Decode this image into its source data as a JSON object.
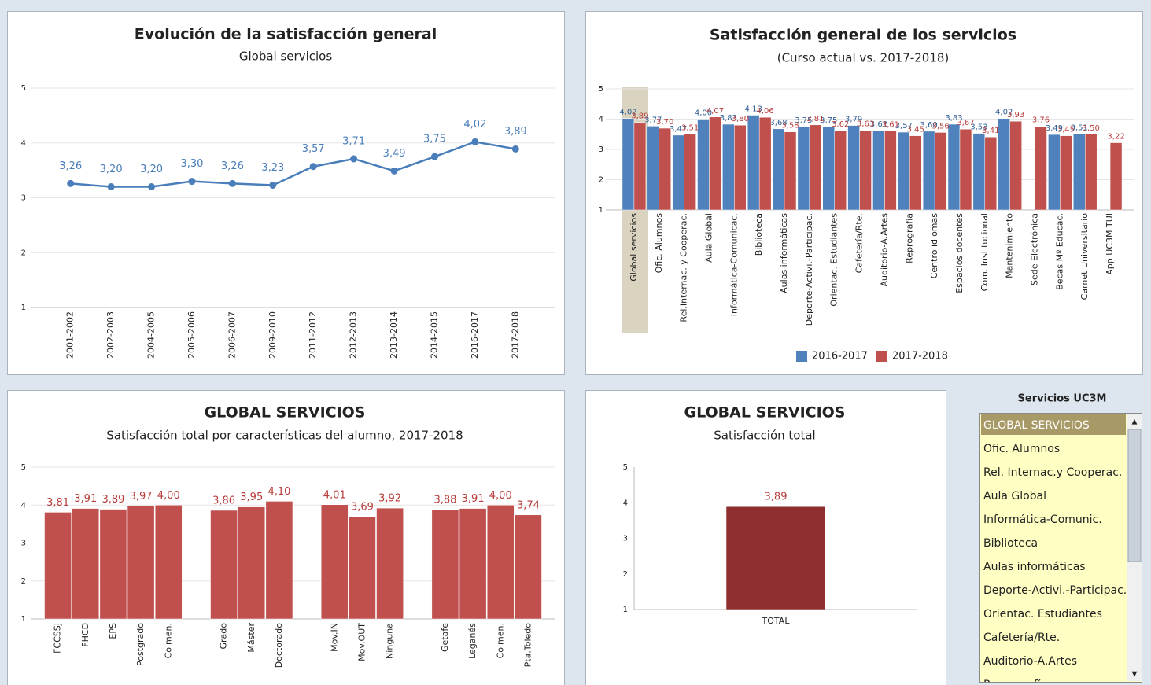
{
  "chart_data": [
    {
      "type": "line",
      "title": "Evolución de la satisfacción general",
      "subtitle": "Global servicios",
      "categories": [
        "2001-2002",
        "2002-2003",
        "2004-2005",
        "2005-2006",
        "2006-2007",
        "2009-2010",
        "2011-2012",
        "2012-2013",
        "2013-2014",
        "2014-2015",
        "2016-2017",
        "2017-2018"
      ],
      "values": [
        3.26,
        3.2,
        3.2,
        3.3,
        3.26,
        3.23,
        3.57,
        3.71,
        3.49,
        3.75,
        4.02,
        3.89
      ],
      "value_labels": [
        "3,26",
        "3,20",
        "3,20",
        "3,30",
        "3,26",
        "3,23",
        "3,57",
        "3,71",
        "3,49",
        "3,75",
        "4,02",
        "3,89"
      ],
      "color": "#4a7ebb",
      "ylim": [
        1,
        5
      ],
      "yticks": [
        1,
        2,
        3,
        4,
        5
      ],
      "grid": true
    },
    {
      "type": "grouped-bar",
      "title": "Satisfacción general de los servicios",
      "subtitle": "(Curso actual vs. 2017-2018)",
      "categories": [
        "Global servicios",
        "Ofic. Alumnos",
        "Rel.Internac. y Cooperac.",
        "Aula Global",
        "Informática-Comunicac.",
        "Biblioteca",
        "Aulas informáticas",
        "Deporte-Activi.-Participac.",
        "Orientac. Estudiantes",
        "Cafetería/Rte.",
        "Auditorio-A.Artes",
        "Reprografía",
        "Centro idiomas",
        "Espacios docentes",
        "Com. Institucional",
        "Mantenimiento",
        "Sede Electrónica",
        "Becas Mº Educac.",
        "Carnet Universitario",
        "App UC3M TUI"
      ],
      "series": [
        {
          "name": "2016-2017",
          "color": "#4f81bd",
          "label_color": "#2f5e96",
          "values": [
            4.02,
            3.77,
            3.47,
            4.0,
            3.83,
            4.13,
            3.68,
            3.75,
            3.75,
            3.79,
            3.62,
            3.57,
            3.6,
            3.83,
            3.53,
            4.02,
            null,
            3.49,
            3.51,
            null
          ],
          "value_labels": [
            "4,02",
            "3,77",
            "3,47",
            "4,00",
            "3,83",
            "4,13",
            "3,68",
            "3,75",
            "3,75",
            "3,79",
            "3,62",
            "3,57",
            "3,60",
            "3,83",
            "3,53",
            "4,02",
            null,
            "3,49",
            "3,51",
            null
          ]
        },
        {
          "name": "2017-2018",
          "color": "#c0504d",
          "label_color": "#b83c39",
          "values": [
            3.89,
            3.7,
            3.51,
            4.07,
            3.8,
            4.06,
            3.58,
            3.81,
            3.62,
            3.63,
            3.61,
            3.45,
            3.56,
            3.67,
            3.41,
            3.93,
            3.76,
            3.45,
            3.5,
            3.22
          ],
          "value_labels": [
            "3,89",
            "3,70",
            "3,51",
            "4,07",
            "3,80",
            "4,06",
            "3,58",
            "3,81",
            "3,62",
            "3,63",
            "3,61",
            "3,45",
            "3,56",
            "3,67",
            "3,41",
            "3,93",
            "3,76",
            "3,45",
            "3,50",
            "3,22"
          ]
        }
      ],
      "ylim": [
        1,
        5
      ],
      "yticks": [
        1,
        2,
        3,
        4,
        5
      ],
      "grid": true,
      "legend": "bottom"
    },
    {
      "type": "bar",
      "title": "GLOBAL SERVICIOS",
      "subtitle": "Satisfacción total por características del alumno, 2017-2018",
      "categories": [
        "FCCSSJ",
        "FHCD",
        "EPS",
        "Postgrado",
        "Colmen.",
        null,
        "Grado",
        "Máster",
        "Doctorado",
        null,
        "Mov.IN",
        "Mov.OUT",
        "Ninguna",
        null,
        "Getafe",
        "Leganés",
        "Colmen.",
        "Pta.Toledo"
      ],
      "values": [
        3.81,
        3.91,
        3.89,
        3.97,
        4.0,
        null,
        3.86,
        3.95,
        4.1,
        null,
        4.01,
        3.69,
        3.92,
        null,
        3.88,
        3.91,
        4.0,
        3.74
      ],
      "value_labels": [
        "3,81",
        "3,91",
        "3,89",
        "3,97",
        "4,00",
        null,
        "3,86",
        "3,95",
        "4,10",
        null,
        "4,01",
        "3,69",
        "3,92",
        null,
        "3,88",
        "3,91",
        "4,00",
        "3,74"
      ],
      "color": "#c0504d",
      "label_color": "#b83c39",
      "ylim": [
        1,
        5
      ],
      "yticks": [
        1,
        2,
        3,
        4,
        5
      ],
      "grid": true
    },
    {
      "type": "bar",
      "title": "GLOBAL SERVICIOS",
      "subtitle": "Satisfacción total",
      "categories": [
        "TOTAL"
      ],
      "values": [
        3.89
      ],
      "value_labels": [
        "3,89"
      ],
      "color": "#8e2f2d",
      "label_color": "#b83c39",
      "ylim": [
        1,
        5
      ],
      "yticks": [
        1,
        2,
        3,
        4,
        5
      ],
      "grid": false
    }
  ],
  "slicer": {
    "title": "Servicios UC3M",
    "selected": 0,
    "items": [
      "GLOBAL SERVICIOS",
      "Ofic. Alumnos",
      "Rel. Internac.y Cooperac.",
      "Aula Global",
      "Informática-Comunic.",
      "Biblioteca",
      "Aulas informáticas",
      "Deporte-Activi.-Participac.",
      "Orientac. Estudiantes",
      "Cafetería/Rte.",
      "Auditorio-A.Artes",
      "Reprografía"
    ]
  }
}
